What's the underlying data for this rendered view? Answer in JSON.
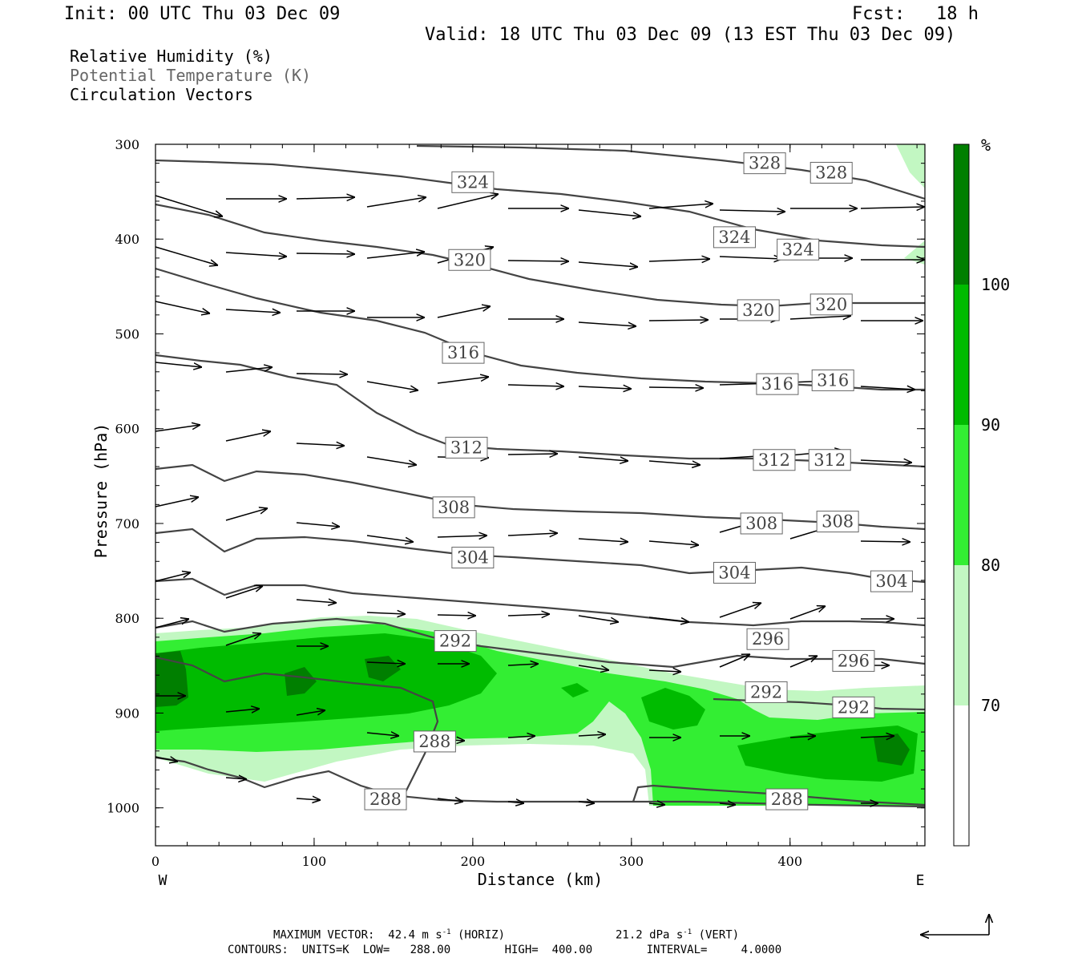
{
  "header": {
    "init": "Init: 00 UTC Thu 03 Dec 09",
    "fcst_label": "Fcst:",
    "fcst_value": "18 h",
    "valid": "Valid: 18 UTC Thu 03 Dec 09 (13 EST Thu 03 Dec 09)"
  },
  "titles": {
    "rh": "Relative Humidity (%)",
    "theta": "Potential Temperature (K)",
    "vectors": "Circulation Vectors"
  },
  "colors": {
    "rh_70_80": "#c2f7c2",
    "rh_80_90": "#33ee33",
    "rh_90_100": "#00bb00",
    "rh_100_plus": "#007f00",
    "contour_line": "#444444",
    "vector": "#000000"
  },
  "footer": {
    "max_vector": "MAXIMUM VECTOR:  42.4 m s",
    "max_vector_exp": "-1",
    "max_vector_h": " (HORIZ)",
    "max_vector_v": "21.2 dPa s",
    "max_vector_v_exp": "-1",
    "max_vector_vunit": " (VERT)",
    "contours": "CONTOURS:  UNITS=K  LOW=   288.00        HIGH=  400.00        INTERVAL=     4.0000"
  },
  "chart_data": {
    "type": "cross-section",
    "xlabel": "Distance (km)",
    "ylabel": "Pressure (hPa)",
    "x_ticks": [
      "0",
      "100",
      "200",
      "300",
      "400"
    ],
    "y_ticks": [
      "300",
      "400",
      "500",
      "600",
      "700",
      "800",
      "900",
      "1000"
    ],
    "x_end_labels": {
      "west": "W",
      "east": "E"
    },
    "xlim": [
      0,
      485
    ],
    "ylim": [
      1040,
      300
    ],
    "colorbar": {
      "unit": "%",
      "levels": [
        "100",
        "90",
        "80",
        "70"
      ]
    },
    "theta_contour_labels": [
      {
        "value": "328",
        "x": 384,
        "p": 320
      },
      {
        "value": "328",
        "x": 426,
        "p": 330
      },
      {
        "value": "324",
        "x": 200,
        "p": 340
      },
      {
        "value": "324",
        "x": 365,
        "p": 398
      },
      {
        "value": "324",
        "x": 405,
        "p": 411
      },
      {
        "value": "320",
        "x": 198,
        "p": 422
      },
      {
        "value": "320",
        "x": 380,
        "p": 475
      },
      {
        "value": "320",
        "x": 426,
        "p": 469
      },
      {
        "value": "316",
        "x": 194,
        "p": 520
      },
      {
        "value": "316",
        "x": 392,
        "p": 553
      },
      {
        "value": "316",
        "x": 427,
        "p": 549
      },
      {
        "value": "312",
        "x": 196,
        "p": 620
      },
      {
        "value": "312",
        "x": 390,
        "p": 633
      },
      {
        "value": "312",
        "x": 425,
        "p": 633
      },
      {
        "value": "308",
        "x": 188,
        "p": 683
      },
      {
        "value": "308",
        "x": 382,
        "p": 700
      },
      {
        "value": "308",
        "x": 430,
        "p": 698
      },
      {
        "value": "304",
        "x": 200,
        "p": 736
      },
      {
        "value": "304",
        "x": 365,
        "p": 752
      },
      {
        "value": "304",
        "x": 464,
        "p": 761
      },
      {
        "value": "292",
        "x": 189,
        "p": 824
      },
      {
        "value": "296",
        "x": 386,
        "p": 822
      },
      {
        "value": "296",
        "x": 440,
        "p": 845
      },
      {
        "value": "292",
        "x": 385,
        "p": 878
      },
      {
        "value": "292",
        "x": 440,
        "p": 894
      },
      {
        "value": "288",
        "x": 176,
        "p": 930
      },
      {
        "value": "288",
        "x": 145,
        "p": 991
      },
      {
        "value": "288",
        "x": 398,
        "p": 991
      }
    ]
  }
}
